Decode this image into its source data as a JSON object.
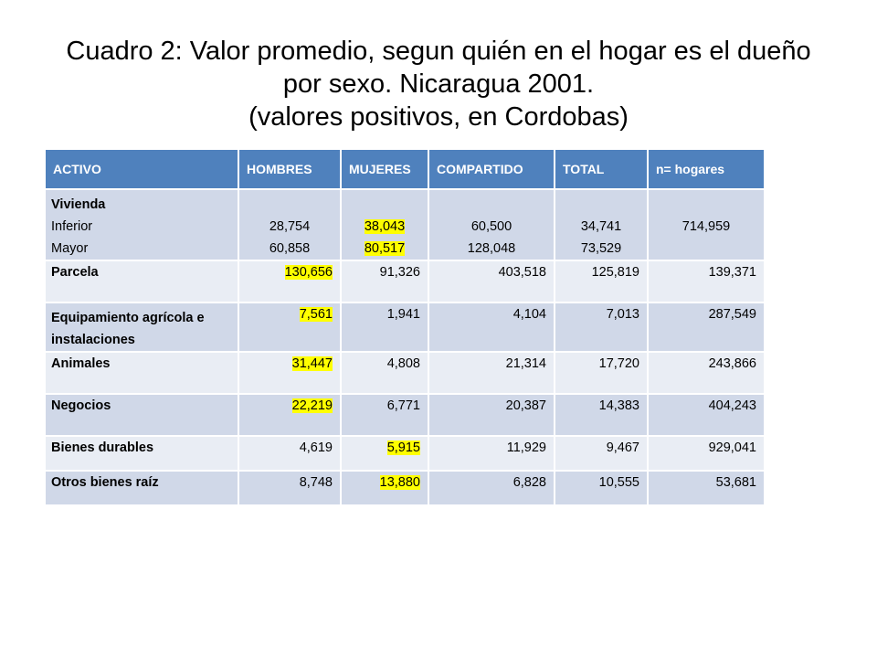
{
  "title": {
    "line1": "Cuadro 2:  Valor promedio, segun quién en el hogar es el dueño",
    "line2": "por sexo.  Nicaragua 2001.",
    "line3": "(valores positivos, en Cordobas)"
  },
  "table": {
    "headers": [
      "ACTIVO",
      "HOMBRES",
      "MUJERES",
      "COMPARTIDO",
      "TOTAL",
      "n= hogares"
    ],
    "vivienda": {
      "label": "Vivienda",
      "sub1": "Inferior",
      "sub2": "Mayor",
      "hombres_inf": "28,754",
      "hombres_may": "60,858",
      "mujeres_inf": "38,043",
      "mujeres_may": "80,517",
      "comp_inf": "60,500",
      "comp_may": "128,048",
      "total_inf": "34,741",
      "total_may": "73,529",
      "n": "714,959"
    },
    "rows": [
      {
        "label": "Parcela",
        "hombres": "130,656",
        "mujeres": "91,326",
        "compartido": "403,518",
        "total": "125,819",
        "n": "139,371"
      },
      {
        "label1": "Equipamiento agrícola e",
        "label2": "instalaciones",
        "hombres": "7,561",
        "mujeres": "1,941",
        "compartido": "4,104",
        "total": "7,013",
        "n": "287,549"
      },
      {
        "label": "Animales",
        "hombres": "31,447",
        "mujeres": "4,808",
        "compartido": "21,314",
        "total": "17,720",
        "n": "243,866"
      },
      {
        "label": "Negocios",
        "hombres": "22,219",
        "mujeres": "6,771",
        "compartido": "20,387",
        "total": "14,383",
        "n": "404,243"
      },
      {
        "label": "Bienes durables",
        "hombres": "4,619",
        "mujeres": "5,915",
        "compartido": "11,929",
        "total": "9,467",
        "n": "929,041"
      },
      {
        "label": "Otros bienes raíz",
        "hombres": "8,748",
        "mujeres": "13,880",
        "compartido": "6,828",
        "total": "10,555",
        "n": "53,681"
      }
    ],
    "colors": {
      "header": "#4f81bd",
      "row_dark": "#d0d8e8",
      "row_light": "#e9edf4",
      "highlight": "#ffff00"
    }
  }
}
